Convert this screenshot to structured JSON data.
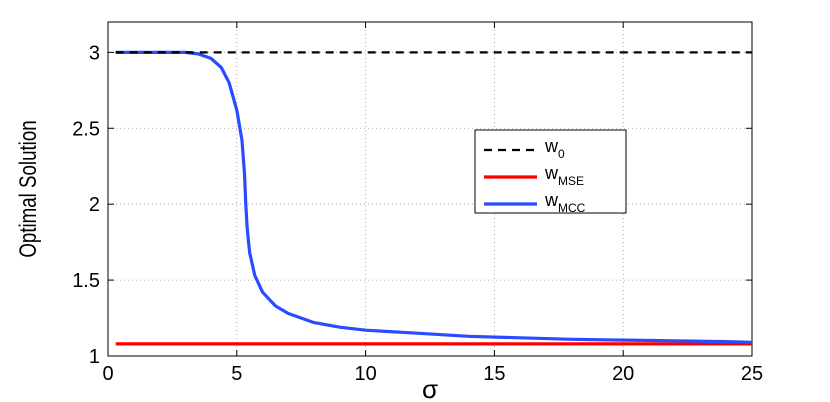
{
  "chart_data": {
    "type": "line",
    "xlabel": "σ",
    "ylabel": "Optimal Solution",
    "xlim": [
      0,
      25
    ],
    "ylim": [
      1,
      3.2
    ],
    "xticks": [
      0,
      5,
      10,
      15,
      20,
      25
    ],
    "yticks": [
      1,
      1.5,
      2,
      2.5,
      3
    ],
    "xtick_labels": [
      "0",
      "5",
      "10",
      "15",
      "20",
      "25"
    ],
    "ytick_labels": [
      "1",
      "1.5",
      "2",
      "2.5",
      "3"
    ],
    "grid": true,
    "legend_position": "right-middle",
    "series": [
      {
        "name_main": "w",
        "name_sub": "0",
        "color": "#000000",
        "style": "dashed",
        "x": [
          0.3,
          25
        ],
        "y": [
          3.0,
          3.0
        ]
      },
      {
        "name_main": "w",
        "name_sub": "MSE",
        "color": "#ff0000",
        "style": "solid",
        "x": [
          0.3,
          25
        ],
        "y": [
          1.08,
          1.08
        ]
      },
      {
        "name_main": "w",
        "name_sub": "MCC",
        "color": "#2a4bff",
        "style": "solid",
        "x": [
          0.3,
          3.0,
          3.5,
          4.0,
          4.4,
          4.7,
          5.0,
          5.2,
          5.3,
          5.35,
          5.4,
          5.45,
          5.5,
          5.7,
          6.0,
          6.5,
          7.0,
          8.0,
          9.0,
          10.0,
          12.0,
          14.0,
          16.0,
          18.0,
          20.0,
          22.0,
          24.0,
          25.0
        ],
        "y": [
          3.0,
          3.0,
          2.99,
          2.96,
          2.9,
          2.8,
          2.62,
          2.42,
          2.2,
          2.0,
          1.85,
          1.76,
          1.68,
          1.53,
          1.42,
          1.33,
          1.28,
          1.22,
          1.19,
          1.17,
          1.15,
          1.13,
          1.12,
          1.11,
          1.105,
          1.1,
          1.095,
          1.09
        ]
      }
    ]
  }
}
